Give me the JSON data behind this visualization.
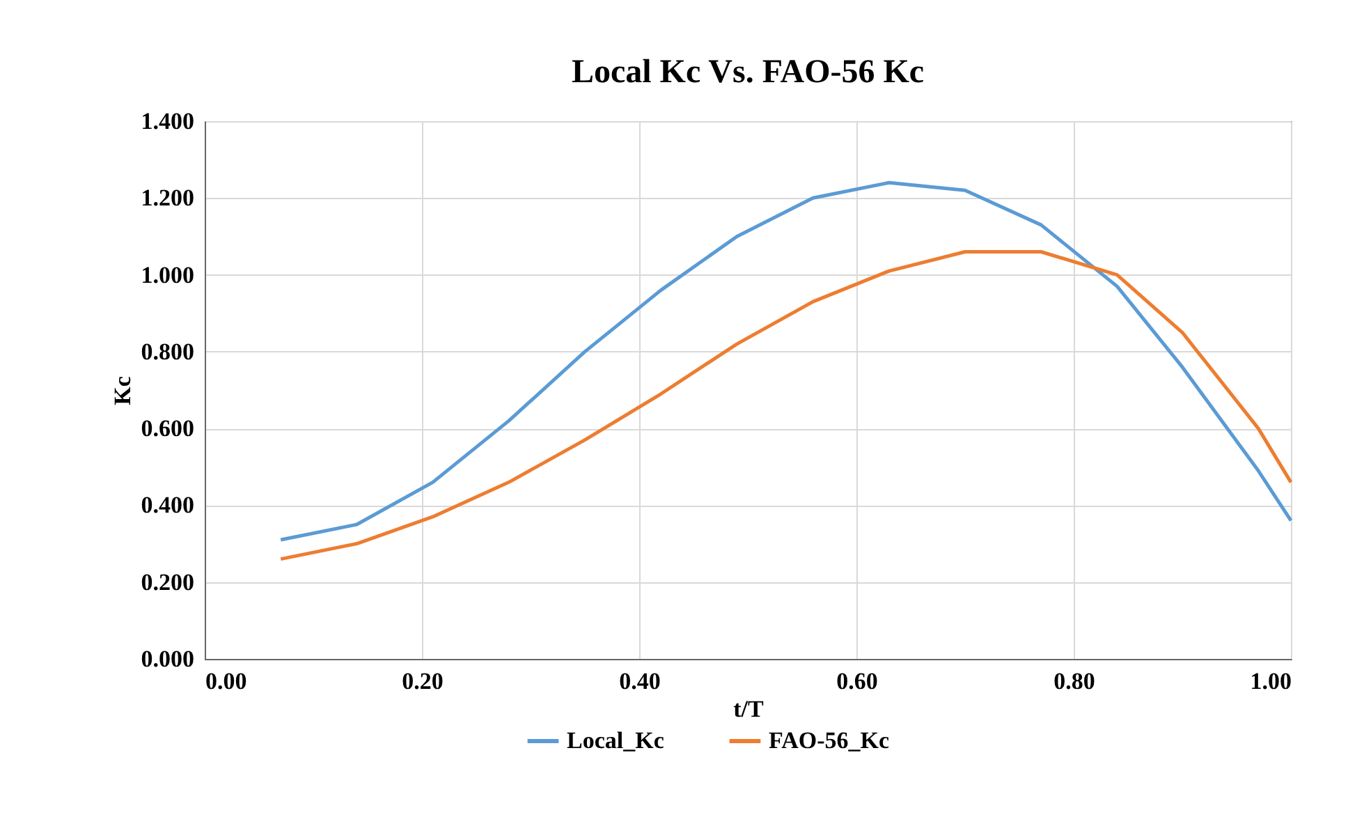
{
  "chart_data": {
    "type": "line",
    "title": "Local Kc Vs. FAO-56 Kc",
    "xlabel": "t/T",
    "ylabel": "Kc",
    "x": [
      0.07,
      0.14,
      0.21,
      0.28,
      0.35,
      0.42,
      0.49,
      0.56,
      0.63,
      0.7,
      0.77,
      0.84,
      0.9,
      0.97,
      1.0
    ],
    "series": [
      {
        "name": "Local_Kc",
        "color": "#5b9bd5",
        "values": [
          0.31,
          0.35,
          0.46,
          0.62,
          0.8,
          0.96,
          1.1,
          1.2,
          1.24,
          1.22,
          1.13,
          0.97,
          0.76,
          0.49,
          0.36
        ]
      },
      {
        "name": "FAO-56_Kc",
        "color": "#ed7d31",
        "values": [
          0.26,
          0.3,
          0.37,
          0.46,
          0.57,
          0.69,
          0.82,
          0.93,
          1.01,
          1.06,
          1.06,
          1.0,
          0.85,
          0.6,
          0.46
        ]
      }
    ],
    "xlim": [
      0,
      1
    ],
    "xticks": [
      {
        "value": 0,
        "label": "0.00"
      },
      {
        "value": 0.2,
        "label": "0.20"
      },
      {
        "value": 0.4,
        "label": "0.40"
      },
      {
        "value": 0.6,
        "label": "0.60"
      },
      {
        "value": 0.8,
        "label": "0.80"
      },
      {
        "value": 1,
        "label": "1.00"
      }
    ],
    "ylim": [
      0,
      1.4
    ],
    "yticks": [
      {
        "value": 0,
        "label": "0.000"
      },
      {
        "value": 0.2,
        "label": "0.200"
      },
      {
        "value": 0.4,
        "label": "0.400"
      },
      {
        "value": 0.6,
        "label": "0.600"
      },
      {
        "value": 0.8,
        "label": "0.800"
      },
      {
        "value": 1.0,
        "label": "1.000"
      },
      {
        "value": 1.2,
        "label": "1.200"
      },
      {
        "value": 1.4,
        "label": "1.400"
      }
    ],
    "grid": true,
    "legend": "bottom",
    "marker": "none",
    "line_style": "solid"
  }
}
